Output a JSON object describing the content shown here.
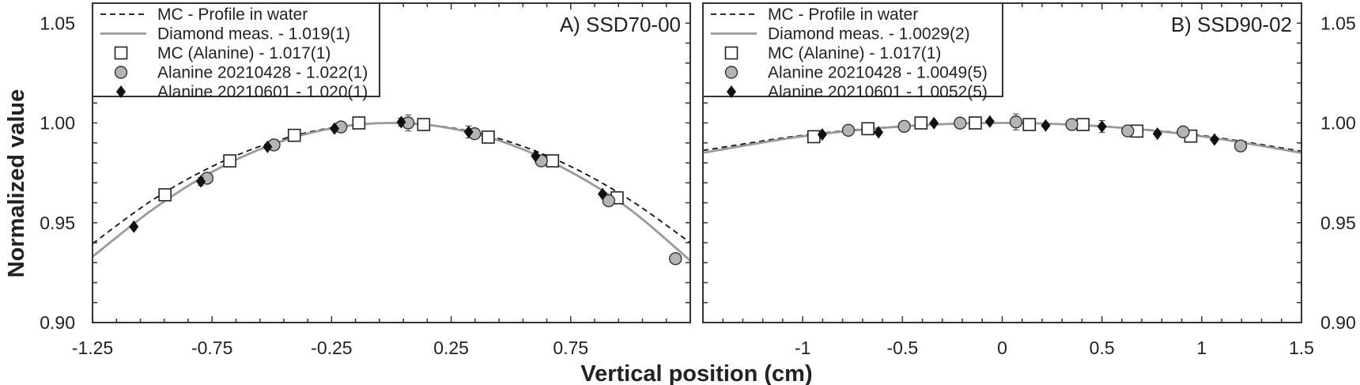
{
  "chart_data": {
    "type": "scatter",
    "xlabel": "Vertical position (cm)",
    "ylabel": "Normalized value",
    "ylim": [
      0.9,
      1.06
    ],
    "yticks": [
      0.9,
      0.95,
      1.0,
      1.05
    ],
    "ytick_labels": [
      "0.90",
      "0.95",
      "1.00",
      "1.05"
    ],
    "grid": false,
    "colors": {
      "dashed": "#111111",
      "solid": "#9a9a9a",
      "square_fill": "#ffffff",
      "circle_fill": "#b4b4b4",
      "diamond_fill": "#111111",
      "axis": "#333333"
    },
    "panels": [
      {
        "title": "A) SSD70-00",
        "xlim": [
          -1.25,
          1.25
        ],
        "xticks": [
          -1.25,
          -0.75,
          -0.25,
          0.25,
          0.75
        ],
        "xtick_labels": [
          "-1.25",
          "-0.75",
          "-0.25",
          "0.25",
          "0.75"
        ],
        "legend_placement": "top-left",
        "legend": [
          {
            "label": "MC - Profile in water",
            "kind": "dashed"
          },
          {
            "label": "Diamond meas. - 1.019(1)",
            "kind": "solid"
          },
          {
            "label": "MC (Alanine) - 1.017(1)",
            "kind": "square"
          },
          {
            "label": "Alanine 20210428 - 1.022(1)",
            "kind": "circle"
          },
          {
            "label": "Alanine 20210601 - 1.020(1)",
            "kind": "diamond"
          }
        ],
        "curves": {
          "dashed": {
            "x": [
              -1.25,
              -1.0,
              -0.75,
              -0.5,
              -0.25,
              0,
              0.25,
              0.5,
              0.75,
              1.0,
              1.25
            ],
            "y": [
              0.9395,
              0.9613,
              0.9782,
              0.9903,
              0.9976,
              1.0,
              0.9976,
              0.9903,
              0.9782,
              0.9613,
              0.94
            ]
          },
          "solid": {
            "x": [
              -1.25,
              -1.0,
              -0.75,
              -0.5,
              -0.25,
              0,
              0.25,
              0.5,
              0.75,
              1.0,
              1.25
            ],
            "y": [
              0.933,
              0.9565,
              0.9755,
              0.9891,
              0.9973,
              1.0,
              0.9973,
              0.9891,
              0.9755,
              0.9565,
              0.931
            ]
          }
        },
        "points": {
          "square": [
            [
              -0.947,
              0.964
            ],
            [
              -0.676,
              0.981
            ],
            [
              -0.406,
              0.9938
            ],
            [
              -0.136,
              1.0
            ],
            [
              0.135,
              0.9992
            ],
            [
              0.405,
              0.9929
            ],
            [
              0.674,
              0.981
            ],
            [
              0.944,
              0.9625
            ]
          ],
          "circle": [
            [
              -0.771,
              0.9723
            ],
            [
              -0.491,
              0.989
            ],
            [
              -0.211,
              0.998
            ],
            [
              0.07,
              1.0,
              0.004
            ],
            [
              0.348,
              0.9946
            ],
            [
              0.627,
              0.981
            ],
            [
              0.909,
              0.961
            ],
            [
              1.188,
              0.932
            ]
          ],
          "diamond": [
            [
              -1.077,
              0.948
            ],
            [
              -0.797,
              0.9707,
              0.002
            ],
            [
              -0.518,
              0.988
            ],
            [
              -0.238,
              0.9972
            ],
            [
              0.041,
              1.0004,
              0.002
            ],
            [
              0.323,
              0.9955,
              0.003
            ],
            [
              0.603,
              0.9834
            ],
            [
              0.883,
              0.9644
            ]
          ]
        }
      },
      {
        "title": "B) SSD90-02",
        "xlim": [
          -1.5,
          1.5
        ],
        "xticks": [
          -1,
          -0.5,
          0,
          0.5,
          1,
          1.5
        ],
        "xtick_labels": [
          "-1",
          "-0.5",
          "0",
          "0.5",
          "1",
          "1.5"
        ],
        "legend_placement": "top-left",
        "legend": [
          {
            "label": "MC - Profile in water",
            "kind": "dashed"
          },
          {
            "label": "Diamond meas. - 1.0029(2)",
            "kind": "solid"
          },
          {
            "label": "MC (Alanine) - 1.017(1)",
            "kind": "square"
          },
          {
            "label": "Alanine 20210428 - 1.0049(5)",
            "kind": "circle"
          },
          {
            "label": "Alanine 20210601 - 1.0052(5)",
            "kind": "diamond"
          }
        ],
        "curves": {
          "dashed": {
            "x": [
              -1.5,
              -1.0,
              -0.5,
              0,
              0.5,
              1.0,
              1.5
            ],
            "y": [
              0.9862,
              0.9938,
              0.9984,
              1.0,
              0.9984,
              0.9937,
              0.9858
            ]
          },
          "solid": {
            "x": [
              -1.5,
              -1.0,
              -0.5,
              0,
              0.5,
              1.0,
              1.5
            ],
            "y": [
              0.985,
              0.9933,
              0.9983,
              1.0,
              0.9983,
              0.9933,
              0.985
            ]
          }
        },
        "points": {
          "square": [
            [
              -0.944,
              0.9931
            ],
            [
              -0.673,
              0.9971
            ],
            [
              -0.407,
              1.0
            ],
            [
              -0.135,
              1.0
            ],
            [
              0.136,
              0.9992
            ],
            [
              0.405,
              0.9992
            ],
            [
              0.675,
              0.9959
            ],
            [
              0.945,
              0.9934
            ]
          ],
          "circle": [
            [
              -0.771,
              0.9963
            ],
            [
              -0.491,
              0.9983
            ],
            [
              -0.211,
              0.9999
            ],
            [
              0.069,
              1.0005,
              0.004
            ],
            [
              0.349,
              0.9992
            ],
            [
              0.629,
              0.996
            ],
            [
              0.907,
              0.9955
            ],
            [
              1.195,
              0.9885
            ]
          ],
          "diamond": [
            [
              -0.902,
              0.9942
            ],
            [
              -0.62,
              0.9953
            ],
            [
              -0.342,
              0.9999
            ],
            [
              -0.062,
              1.0007
            ],
            [
              0.218,
              0.9987
            ],
            [
              0.5,
              0.9982,
              0.003
            ],
            [
              0.778,
              0.9946
            ],
            [
              1.064,
              0.9917
            ]
          ]
        }
      }
    ]
  }
}
